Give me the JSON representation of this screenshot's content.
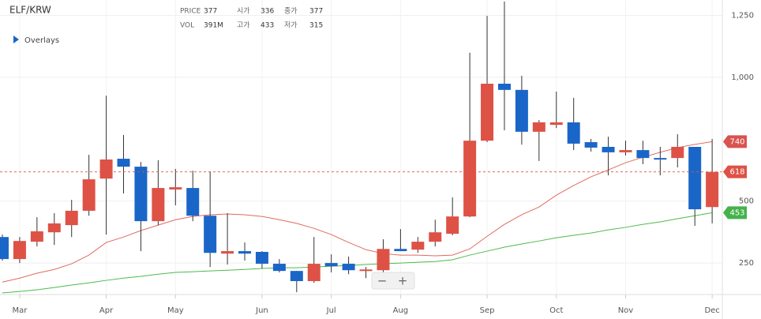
{
  "chart_data": {
    "type": "candlestick",
    "title": "ELF/KRW",
    "categories": [
      null,
      "Mar",
      null,
      null,
      null,
      null,
      "Apr",
      null,
      null,
      null,
      "May",
      null,
      null,
      null,
      null,
      "Jun",
      null,
      null,
      null,
      "Jul",
      null,
      null,
      null,
      "Aug",
      null,
      null,
      null,
      null,
      "Sep",
      null,
      null,
      null,
      "Oct",
      null,
      null,
      null,
      "Nov",
      null,
      null,
      null,
      null,
      "Dec"
    ],
    "open": [
      355,
      266,
      336,
      374,
      403,
      461,
      591,
      671,
      639,
      419,
      547,
      553,
      441,
      288,
      298,
      295,
      247,
      218,
      177,
      250,
      247,
      218,
      221,
      307,
      304,
      336,
      368,
      438,
      744,
      974,
      949,
      780,
      808,
      818,
      738,
      719,
      697,
      706,
      674,
      674,
      719,
      476
    ],
    "high": [
      365,
      355,
      435,
      451,
      505,
      687,
      926,
      767,
      658,
      665,
      630,
      623,
      620,
      451,
      333,
      298,
      266,
      218,
      355,
      285,
      276,
      234,
      346,
      387,
      355,
      425,
      515,
      1099,
      1248,
      1306,
      1006,
      827,
      942,
      917,
      751,
      760,
      744,
      744,
      719,
      770,
      719,
      751
    ],
    "low": [
      260,
      250,
      317,
      323,
      355,
      441,
      365,
      531,
      298,
      403,
      483,
      419,
      234,
      244,
      260,
      228,
      212,
      132,
      170,
      212,
      205,
      189,
      212,
      298,
      291,
      317,
      362,
      435,
      738,
      786,
      728,
      662,
      795,
      706,
      700,
      604,
      684,
      649,
      604,
      636,
      400,
      410
    ],
    "close": [
      266,
      339,
      378,
      410,
      461,
      588,
      668,
      639,
      419,
      553,
      556,
      441,
      291,
      298,
      288,
      247,
      218,
      177,
      247,
      237,
      221,
      224,
      307,
      298,
      336,
      374,
      438,
      744,
      974,
      949,
      780,
      818,
      818,
      732,
      716,
      697,
      706,
      674,
      668,
      719,
      467,
      618
    ],
    "up_color": "#de5246",
    "down_color": "#1a66c8",
    "overlays": [
      {
        "color": "#e06a60",
        "badge_color": "#d9534f",
        "values": [
          173,
          189,
          209,
          224,
          247,
          282,
          333,
          355,
          381,
          403,
          425,
          438,
          445,
          448,
          445,
          438,
          425,
          410,
          390,
          365,
          333,
          304,
          288,
          282,
          282,
          279,
          282,
          307,
          358,
          406,
          445,
          476,
          524,
          563,
          598,
          626,
          655,
          677,
          697,
          716,
          729,
          740
        ]
      },
      {
        "color": "#4cbb4c",
        "badge_color": "#45b24a",
        "values": [
          129,
          135,
          142,
          151,
          161,
          170,
          180,
          189,
          196,
          205,
          212,
          215,
          218,
          221,
          224,
          228,
          231,
          231,
          234,
          237,
          240,
          244,
          247,
          250,
          253,
          256,
          263,
          282,
          298,
          314,
          327,
          339,
          352,
          362,
          371,
          384,
          394,
          406,
          416,
          429,
          441,
          453
        ]
      }
    ],
    "ylim": [
      126,
      1312
    ],
    "yticks": [
      250,
      500,
      {
        "value": 1000,
        "label": "1,000"
      },
      {
        "value": 1250,
        "label": "1,250"
      }
    ],
    "grid": true
  },
  "header": {
    "price_label": "PRICE",
    "price": "377",
    "open_label": "시가",
    "open": "336",
    "close_label": "종가",
    "close": "377",
    "vol_label": "VOL",
    "vol": "391M",
    "high_label": "고가",
    "high": "433",
    "low_label": "저가",
    "low": "315"
  },
  "overlays_toggle": "Overlays",
  "zoom": {
    "out": "−",
    "in": "+"
  }
}
